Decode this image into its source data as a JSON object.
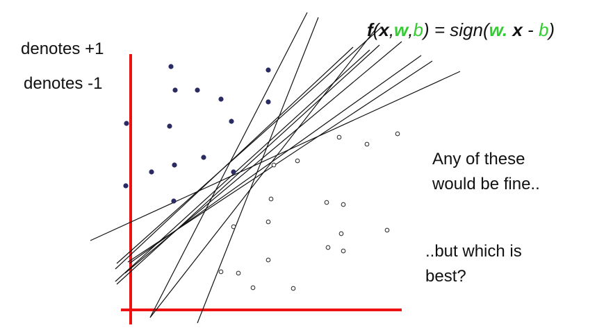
{
  "legend": {
    "positive": "denotes +1",
    "negative": "denotes -1"
  },
  "formula": {
    "f": "f",
    "open_paren": "(",
    "x": "x",
    "comma1": ",",
    "w": "w",
    "comma2": ",",
    "b": "b",
    "close_equals": ") = sign(",
    "w2": "w.",
    "space": " ",
    "x2": "x",
    "minus": " - ",
    "b2": "b",
    "close": ")"
  },
  "notes": {
    "line1": "Any of these",
    "line2": "would be fine..",
    "line3": "..but which is",
    "line4": "best?"
  },
  "colors": {
    "axis": "#ee1111",
    "positive_point": "#2b2b63",
    "negative_point": "#333333",
    "line": "#111111",
    "green": "#33cc33"
  }
}
